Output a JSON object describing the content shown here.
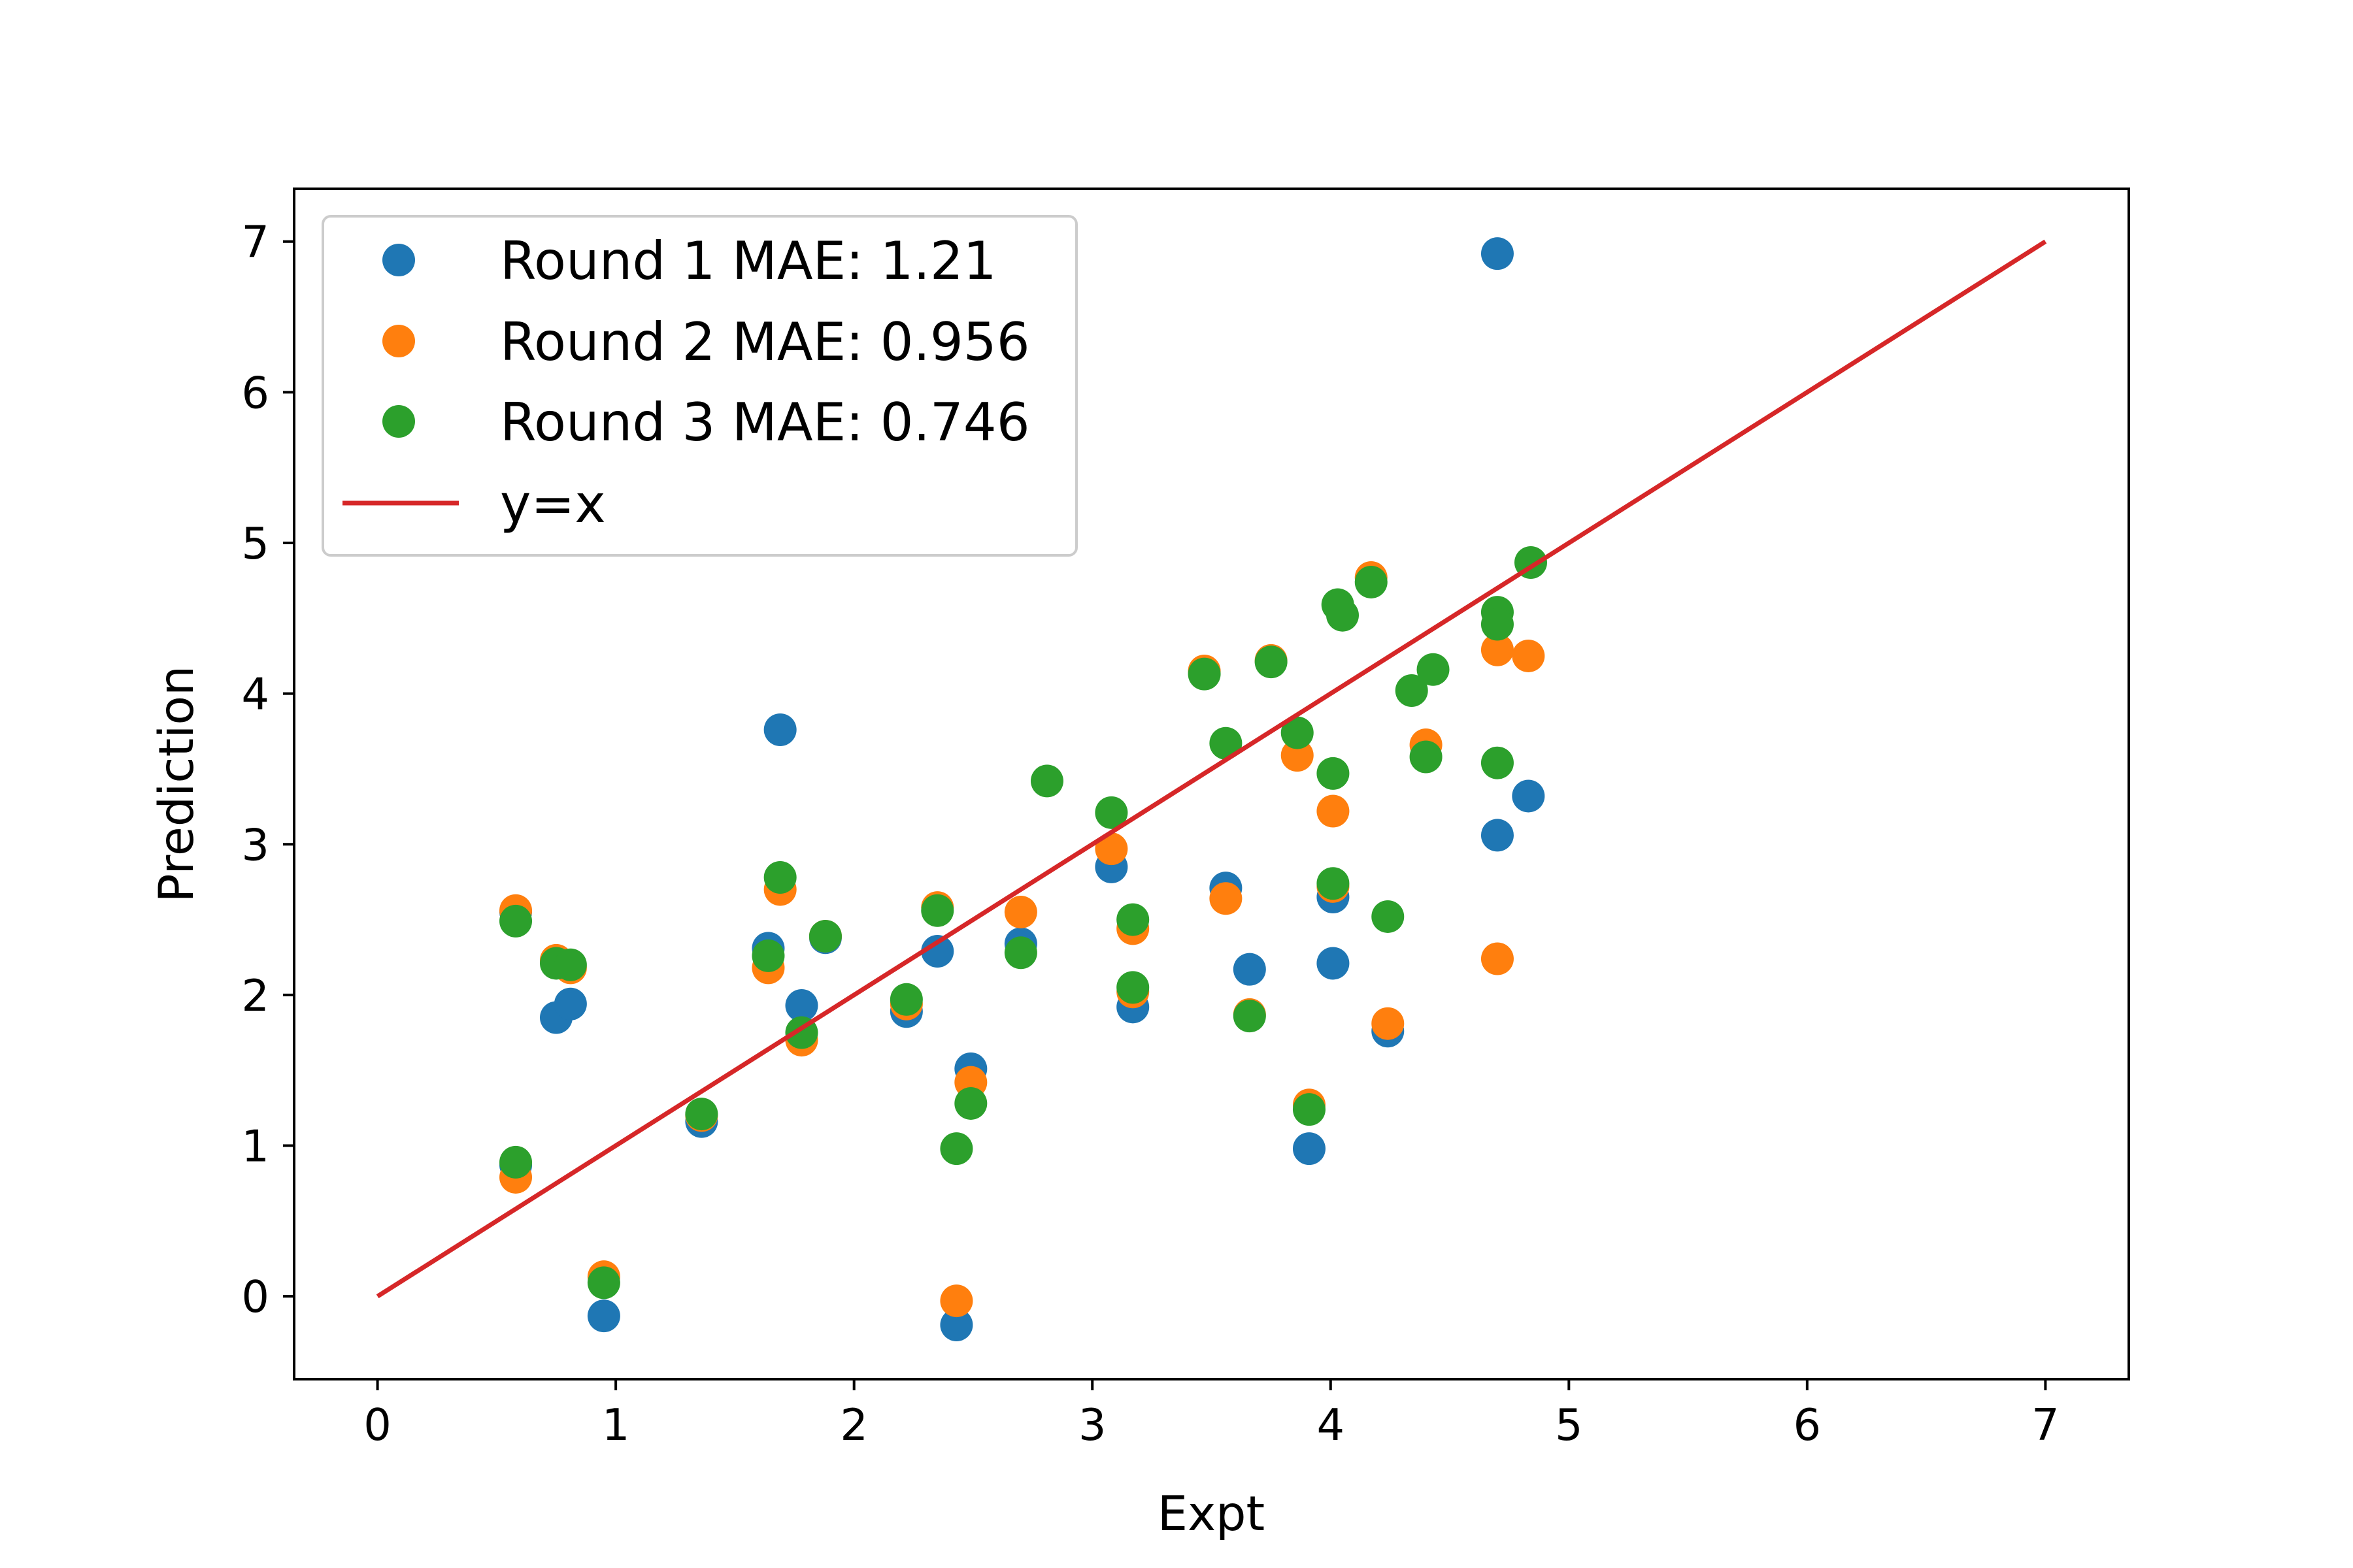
{
  "chart_data": {
    "type": "scatter",
    "title": "",
    "xlabel": "Expt",
    "ylabel": "Prediction",
    "xlim": [
      -0.35,
      7.35
    ],
    "ylim": [
      -0.55,
      7.35
    ],
    "x_ticks": [
      0,
      1,
      2,
      3,
      4,
      5,
      6,
      7
    ],
    "y_ticks": [
      0,
      1,
      2,
      3,
      4,
      5,
      6,
      7
    ],
    "grid": false,
    "legend": {
      "placement": "top-left"
    },
    "series": [
      {
        "name": "Round 1 MAE: 1.21",
        "color": "#1f77b4",
        "points": [
          [
            0.58,
            2.55
          ],
          [
            0.58,
            0.87
          ],
          [
            0.75,
            1.85
          ],
          [
            0.81,
            1.94
          ],
          [
            0.95,
            -0.13
          ],
          [
            1.36,
            1.16
          ],
          [
            1.64,
            2.31
          ],
          [
            1.69,
            3.76
          ],
          [
            1.78,
            1.93
          ],
          [
            1.88,
            2.38
          ],
          [
            2.22,
            1.89
          ],
          [
            2.35,
            2.29
          ],
          [
            2.43,
            -0.19
          ],
          [
            2.49,
            1.51
          ],
          [
            2.7,
            2.34
          ],
          [
            3.08,
            2.85
          ],
          [
            3.17,
            1.92
          ],
          [
            3.56,
            2.71
          ],
          [
            3.66,
            2.17
          ],
          [
            3.91,
            0.98
          ],
          [
            4.01,
            2.65
          ],
          [
            4.01,
            2.21
          ],
          [
            4.24,
            1.76
          ],
          [
            4.7,
            6.92
          ],
          [
            4.7,
            3.06
          ],
          [
            4.83,
            3.32
          ]
        ]
      },
      {
        "name": "Round 2 MAE: 0.956",
        "color": "#ff7f0e",
        "points": [
          [
            0.58,
            2.56
          ],
          [
            0.58,
            0.79
          ],
          [
            0.75,
            2.23
          ],
          [
            0.81,
            2.18
          ],
          [
            0.95,
            0.13
          ],
          [
            1.36,
            1.2
          ],
          [
            1.64,
            2.18
          ],
          [
            1.69,
            2.7
          ],
          [
            1.78,
            1.7
          ],
          [
            1.88,
            2.39
          ],
          [
            2.22,
            1.94
          ],
          [
            2.35,
            2.58
          ],
          [
            2.43,
            -0.03
          ],
          [
            2.49,
            1.42
          ],
          [
            2.7,
            2.55
          ],
          [
            3.08,
            2.97
          ],
          [
            3.17,
            2.44
          ],
          [
            3.17,
            2.02
          ],
          [
            3.47,
            4.15
          ],
          [
            3.56,
            2.64
          ],
          [
            3.66,
            1.87
          ],
          [
            3.75,
            4.22
          ],
          [
            3.86,
            3.59
          ],
          [
            3.91,
            1.27
          ],
          [
            4.01,
            3.22
          ],
          [
            4.01,
            2.72
          ],
          [
            4.17,
            4.77
          ],
          [
            4.24,
            1.81
          ],
          [
            4.4,
            3.66
          ],
          [
            4.7,
            4.29
          ],
          [
            4.7,
            2.24
          ],
          [
            4.83,
            4.25
          ]
        ]
      },
      {
        "name": "Round 3 MAE: 0.746",
        "color": "#2ca02c",
        "points": [
          [
            0.58,
            2.49
          ],
          [
            0.58,
            0.89
          ],
          [
            0.75,
            2.21
          ],
          [
            0.81,
            2.2
          ],
          [
            0.95,
            0.09
          ],
          [
            1.36,
            1.21
          ],
          [
            1.64,
            2.26
          ],
          [
            1.69,
            2.78
          ],
          [
            1.78,
            1.75
          ],
          [
            1.88,
            2.39
          ],
          [
            2.22,
            1.97
          ],
          [
            2.35,
            2.56
          ],
          [
            2.43,
            0.98
          ],
          [
            2.49,
            1.28
          ],
          [
            2.7,
            2.28
          ],
          [
            2.81,
            3.42
          ],
          [
            3.08,
            3.21
          ],
          [
            3.17,
            2.5
          ],
          [
            3.17,
            2.05
          ],
          [
            3.47,
            4.13
          ],
          [
            3.56,
            3.67
          ],
          [
            3.66,
            1.86
          ],
          [
            3.75,
            4.21
          ],
          [
            3.86,
            3.74
          ],
          [
            3.91,
            1.24
          ],
          [
            4.01,
            3.47
          ],
          [
            4.01,
            2.74
          ],
          [
            4.03,
            4.59
          ],
          [
            4.05,
            4.52
          ],
          [
            4.17,
            4.74
          ],
          [
            4.24,
            2.52
          ],
          [
            4.34,
            4.02
          ],
          [
            4.4,
            3.58
          ],
          [
            4.43,
            4.16
          ],
          [
            4.7,
            4.54
          ],
          [
            4.7,
            4.46
          ],
          [
            4.7,
            3.54
          ],
          [
            4.84,
            4.87
          ]
        ]
      }
    ],
    "reference_line": {
      "name": "y=x",
      "color": "#d62728",
      "points": [
        [
          0,
          0
        ],
        [
          7,
          7
        ]
      ]
    }
  }
}
